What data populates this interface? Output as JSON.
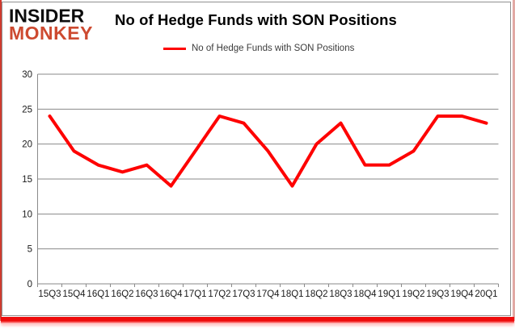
{
  "brand": {
    "line1": "INSIDER",
    "line2": "MONKEY",
    "accent_color": "#cd4a30"
  },
  "header": {
    "title": "No of Hedge Funds with SON Positions"
  },
  "legend": {
    "label": "No of Hedge Funds with SON Positions",
    "line_color": "#fe0000"
  },
  "frame": {
    "bottom_bar_color": "#ee0b0b",
    "left_accent_color": "#d03a2e",
    "border_color": "#8f8f8f"
  },
  "chart_data": {
    "type": "line",
    "title": "No of Hedge Funds with SON Positions",
    "categories": [
      "15Q3",
      "15Q4",
      "16Q1",
      "16Q2",
      "16Q3",
      "16Q4",
      "17Q1",
      "17Q2",
      "17Q3",
      "17Q4",
      "18Q1",
      "18Q2",
      "18Q3",
      "18Q4",
      "19Q1",
      "19Q2",
      "19Q3",
      "19Q4",
      "20Q1"
    ],
    "series": [
      {
        "name": "No of Hedge Funds with SON Positions",
        "color": "#fe0000",
        "values": [
          24,
          19,
          17,
          16,
          17,
          14,
          19,
          24,
          23,
          19,
          14,
          20,
          23,
          17,
          17,
          19,
          24,
          24,
          23
        ]
      }
    ],
    "xlabel": "",
    "ylabel": "",
    "ylim": [
      0,
      30
    ],
    "yticks": [
      0,
      5,
      10,
      15,
      20,
      25,
      30
    ],
    "grid": true,
    "gridline_color": "#8a8a8a",
    "tick_label_color": "#1a1a1a",
    "legend_position": "top"
  }
}
